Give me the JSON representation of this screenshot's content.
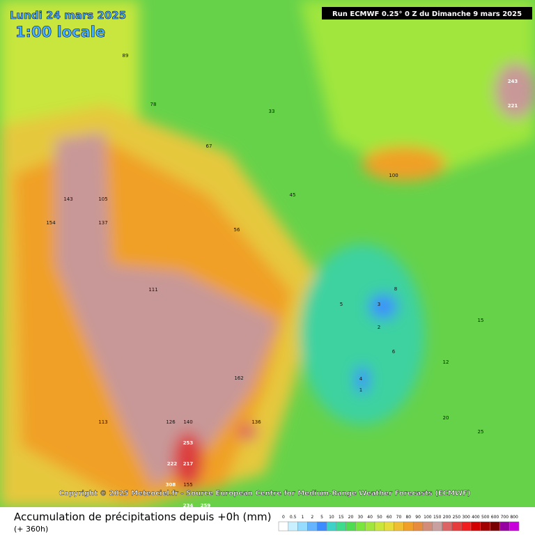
{
  "header": {
    "date": "Lundi 24 mars 2025",
    "time": "1:00 locale",
    "run": "Run ECMWF 0.25° 0 Z du Dimanche 9 mars 2025"
  },
  "copyright": "Copyright © 2025 Meteociel.fr - Source European Centre for Medium-Range Weather Forecasts (ECMWF)",
  "footer": {
    "title": "Accumulation de précipitations depuis +0h (mm)",
    "range": "(+ 360h)"
  },
  "legend": {
    "labels": [
      "0",
      "0.5",
      "1",
      "2",
      "5",
      "10",
      "15",
      "20",
      "30",
      "40",
      "50",
      "60",
      "70",
      "80",
      "90",
      "100",
      "150",
      "200",
      "250",
      "300",
      "400",
      "500",
      "600",
      "700",
      "800"
    ],
    "colors": [
      "#ffffff",
      "#c8f0ff",
      "#96dcff",
      "#64b4ff",
      "#3c8cff",
      "#3cd2c8",
      "#3cdc8c",
      "#50dc50",
      "#78e63c",
      "#a0e63c",
      "#c8e63c",
      "#e6dc3c",
      "#f0be32",
      "#f0a028",
      "#e68c3c",
      "#d28c78",
      "#c8a0a0",
      "#dc6464",
      "#e63c3c",
      "#f01e1e",
      "#d20000",
      "#a00000",
      "#780000",
      "#9600a0",
      "#c800dc"
    ]
  },
  "map_values": [
    243,
    221,
    253,
    217,
    222,
    308,
    234,
    259,
    155,
    140,
    136,
    126,
    162,
    143,
    154,
    137,
    105,
    111,
    113,
    100,
    3,
    4,
    1,
    5,
    2,
    6,
    8,
    12,
    15,
    20,
    25,
    33,
    45,
    56,
    67,
    78,
    89
  ]
}
